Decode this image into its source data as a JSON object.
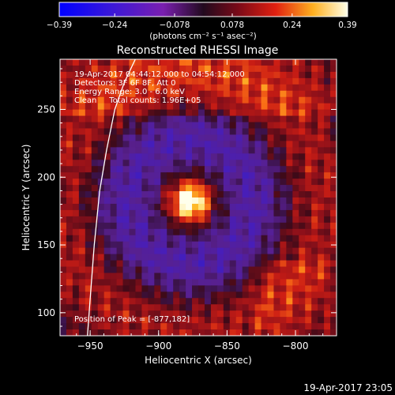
{
  "chart_data": {
    "type": "heatmap",
    "title": "Reconstructed RHESSI Image",
    "xlabel": "Heliocentric X (arcsec)",
    "ylabel": "Heliocentric Y (arcsec)",
    "xlim": [
      -972,
      -770
    ],
    "ylim": [
      83,
      287
    ],
    "x_ticks": [
      "−950",
      "−900",
      "−850",
      "−800"
    ],
    "x_tick_values": [
      -950,
      -900,
      -850,
      -800
    ],
    "y_ticks": [
      "100",
      "150",
      "200",
      "250"
    ],
    "y_tick_values": [
      100,
      150,
      200,
      250
    ],
    "colorbar": {
      "ticks": [
        "−0.39",
        "−0.24",
        "−0.078",
        "0.078",
        "0.24",
        "0.39"
      ],
      "tick_values": [
        -0.39,
        -0.24,
        -0.078,
        0.078,
        0.24,
        0.39
      ],
      "range": [
        -0.39,
        0.39
      ],
      "unit_label": "(photons cm⁻² s⁻¹ asec⁻²)"
    },
    "peak": {
      "x": -877,
      "y": 182
    },
    "limb_points": [
      [
        -917,
        287
      ],
      [
        -925,
        270
      ],
      [
        -932,
        250
      ],
      [
        -938,
        220
      ],
      [
        -943,
        190
      ],
      [
        -947,
        150
      ],
      [
        -950,
        110
      ],
      [
        -952,
        83
      ]
    ],
    "grid": false
  },
  "annotations": {
    "time_range": "19-Apr-2017 04:44:12.000 to 04:54:12.000",
    "detectors": "Detectors: 3F 6F 8F, Att 0",
    "energy": "Energy Range: 3.0 - 6.0 keV",
    "clean": "Clean     Total counts: 1.96E+05",
    "peak_text": "Position of Peak = [-877,182]"
  },
  "footer_timestamp": "19-Apr-2017 23:05"
}
